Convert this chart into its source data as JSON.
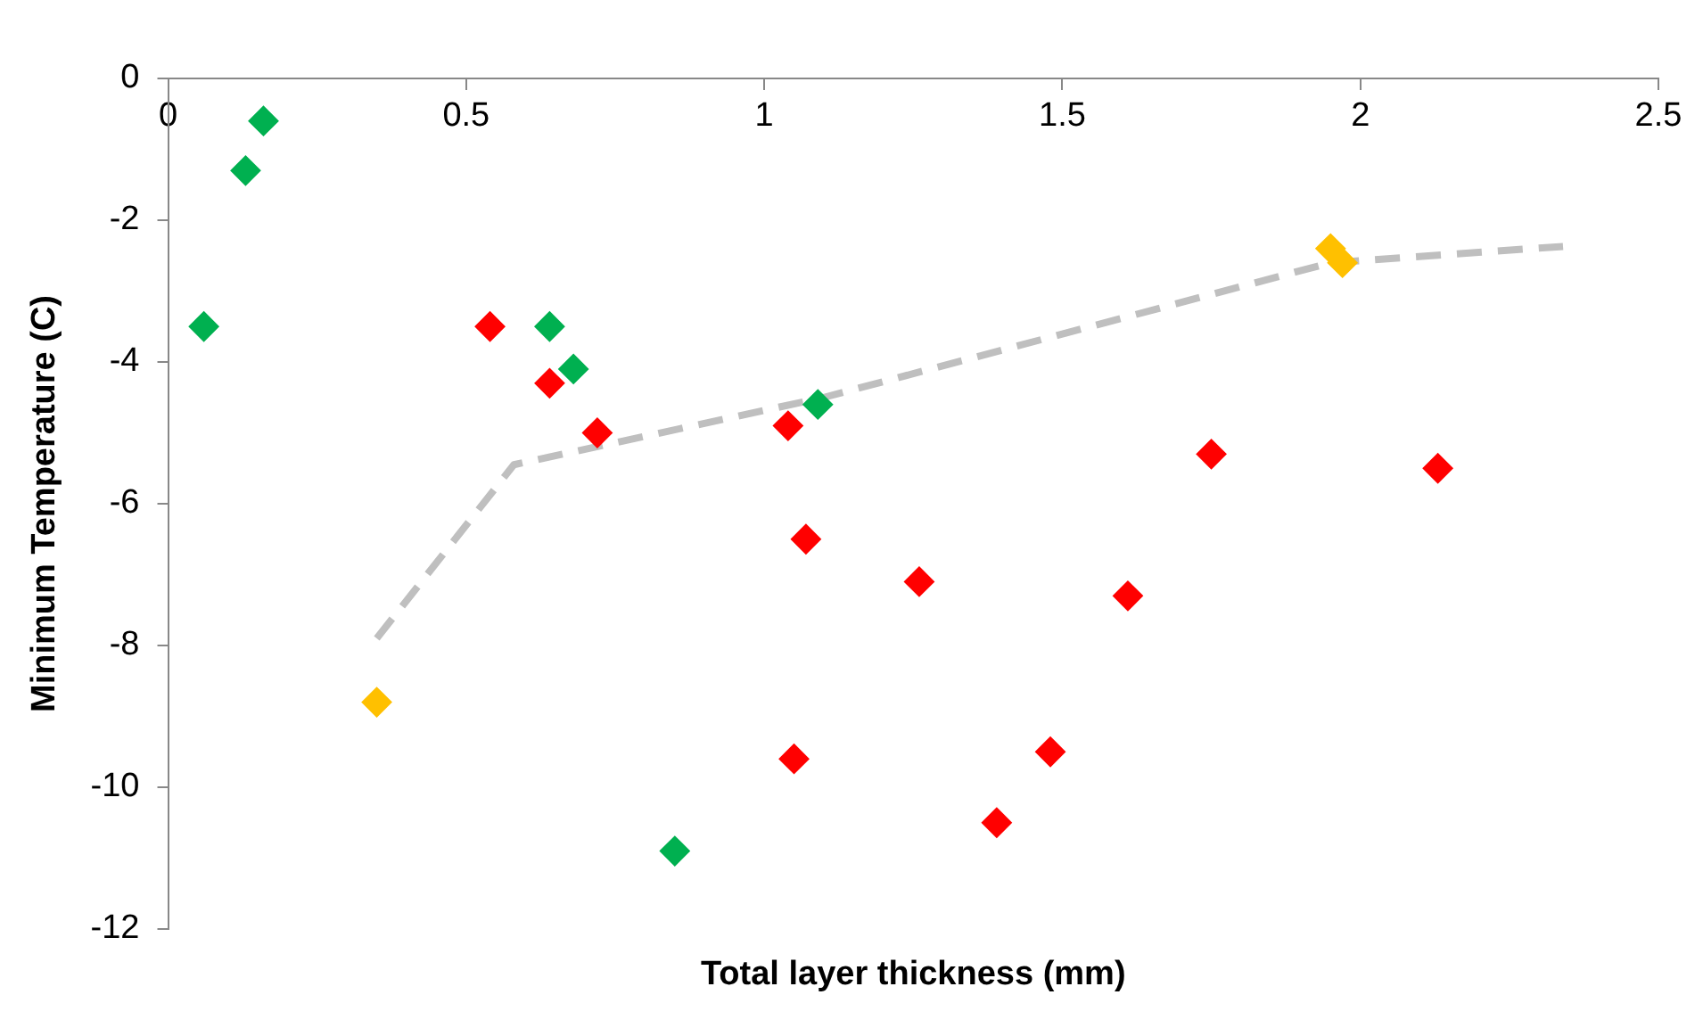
{
  "chart_data": {
    "type": "scatter",
    "xlabel": "Total layer thickness (mm)",
    "ylabel": "Minimum Temperature (C)",
    "xlim": [
      0,
      2.5
    ],
    "xticks": [
      0,
      0.5,
      1,
      1.5,
      2,
      2.5
    ],
    "ylim": [
      -12,
      0
    ],
    "yticks": [
      -12,
      -10,
      -8,
      -6,
      -4,
      -2,
      0
    ],
    "grid": false,
    "legend": false,
    "marker": "diamond",
    "series": [
      {
        "color": "#00b050",
        "x": [
          0.16,
          0.13,
          0.06,
          0.64,
          0.68,
          1.09,
          0.85
        ],
        "values": [
          -0.6,
          -1.3,
          -3.5,
          -3.5,
          -4.1,
          -4.6,
          -10.9
        ]
      },
      {
        "color": "#ff0000",
        "x": [
          0.54,
          0.64,
          0.72,
          1.04,
          1.07,
          1.26,
          1.05,
          1.39,
          1.48,
          1.61,
          1.75,
          2.13
        ],
        "values": [
          -3.5,
          -4.3,
          -5.0,
          -4.9,
          -6.5,
          -7.1,
          -9.6,
          -10.5,
          -9.5,
          -7.3,
          -5.3,
          -5.5
        ]
      },
      {
        "color": "#ffc000",
        "x": [
          0.35,
          1.95,
          1.97
        ],
        "values": [
          -8.8,
          -2.4,
          -2.6
        ]
      },
      {
        "type": "line",
        "color": "#bfbfbf",
        "marker": "none",
        "line_style": "dashed",
        "x": [
          0.35,
          0.58,
          1.1,
          1.95,
          2.34
        ],
        "values": [
          -7.9,
          -5.45,
          -4.5,
          -2.6,
          -2.37
        ]
      }
    ]
  }
}
